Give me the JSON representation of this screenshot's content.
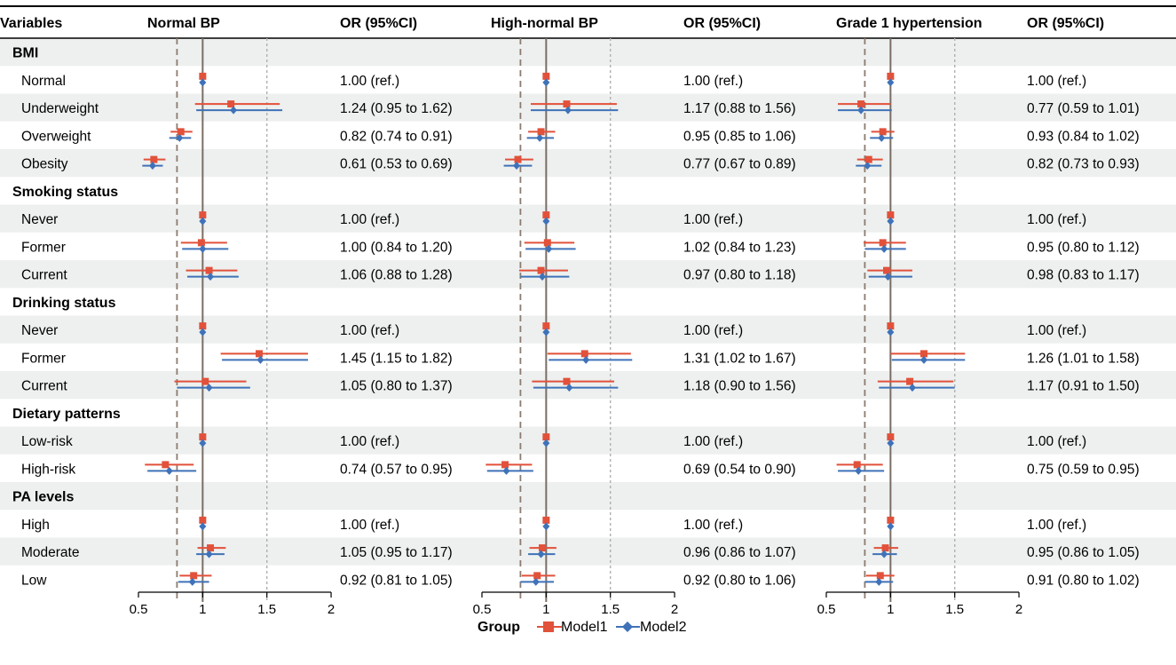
{
  "chart_data": {
    "type": "forest",
    "header": {
      "variables": "Variables",
      "or_label": "OR (95%CI)"
    },
    "panels": [
      {
        "title": "Normal BP"
      },
      {
        "title": "High-normal BP"
      },
      {
        "title": "Grade 1 hypertension"
      }
    ],
    "x_axis": {
      "xlim": [
        0.5,
        2
      ],
      "ticks": [
        0.5,
        1,
        1.5,
        2
      ],
      "tick_labels": [
        "0.5",
        "1",
        "1.5",
        "2"
      ],
      "reference_line": 1,
      "dashed_line": 0.8,
      "dotted_line": 1.5
    },
    "legend": {
      "title": "Group",
      "items": [
        {
          "name": "Model1",
          "color": "#e2513a",
          "marker": "square"
        },
        {
          "name": "Model2",
          "color": "#3f72b8",
          "marker": "diamond"
        }
      ]
    },
    "colors": {
      "model1": "#e2513a",
      "model2": "#3f72b8",
      "stripe": "#edf0ef",
      "reference": "#7a6e64",
      "dashed": "#8c7b70",
      "dotted": "#b0b0b0"
    },
    "rows": [
      {
        "kind": "header",
        "label": "BMI"
      },
      {
        "kind": "item",
        "label": "Normal",
        "values": [
          {
            "text": "1.00 (ref.)",
            "m1": [
              1,
              1,
              1
            ],
            "m2": [
              1,
              1,
              1
            ]
          },
          {
            "text": "1.00 (ref.)",
            "m1": [
              1,
              1,
              1
            ],
            "m2": [
              1,
              1,
              1
            ]
          },
          {
            "text": "1.00 (ref.)",
            "m1": [
              1,
              1,
              1
            ],
            "m2": [
              1,
              1,
              1
            ]
          }
        ]
      },
      {
        "kind": "item",
        "label": "Underweight",
        "values": [
          {
            "text": "1.24 (0.95 to 1.62)",
            "m1": [
              1.22,
              0.94,
              1.6
            ],
            "m2": [
              1.24,
              0.95,
              1.62
            ]
          },
          {
            "text": "1.17 (0.88 to 1.56)",
            "m1": [
              1.16,
              0.88,
              1.55
            ],
            "m2": [
              1.17,
              0.88,
              1.56
            ]
          },
          {
            "text": "0.77 (0.59 to 1.01)",
            "m1": [
              0.77,
              0.59,
              1.0
            ],
            "m2": [
              0.77,
              0.59,
              1.01
            ]
          }
        ]
      },
      {
        "kind": "item",
        "label": "Overweight",
        "values": [
          {
            "text": "0.82 (0.74 to 0.91)",
            "m1": [
              0.83,
              0.75,
              0.92
            ],
            "m2": [
              0.82,
              0.74,
              0.91
            ]
          },
          {
            "text": "0.95 (0.85 to 1.06)",
            "m1": [
              0.96,
              0.86,
              1.07
            ],
            "m2": [
              0.95,
              0.85,
              1.06
            ]
          },
          {
            "text": "0.93 (0.84 to 1.02)",
            "m1": [
              0.94,
              0.85,
              1.03
            ],
            "m2": [
              0.93,
              0.84,
              1.02
            ]
          }
        ]
      },
      {
        "kind": "item",
        "label": "Obesity",
        "values": [
          {
            "text": "0.61 (0.53 to 0.69)",
            "m1": [
              0.62,
              0.54,
              0.71
            ],
            "m2": [
              0.61,
              0.53,
              0.69
            ]
          },
          {
            "text": "0.77 (0.67 to 0.89)",
            "m1": [
              0.78,
              0.68,
              0.9
            ],
            "m2": [
              0.77,
              0.67,
              0.89
            ]
          },
          {
            "text": "0.82 (0.73 to 0.93)",
            "m1": [
              0.83,
              0.74,
              0.94
            ],
            "m2": [
              0.82,
              0.73,
              0.93
            ]
          }
        ]
      },
      {
        "kind": "header",
        "label": "Smoking status"
      },
      {
        "kind": "item",
        "label": "Never",
        "values": [
          {
            "text": "1.00 (ref.)",
            "m1": [
              1,
              1,
              1
            ],
            "m2": [
              1,
              1,
              1
            ]
          },
          {
            "text": "1.00 (ref.)",
            "m1": [
              1,
              1,
              1
            ],
            "m2": [
              1,
              1,
              1
            ]
          },
          {
            "text": "1.00 (ref.)",
            "m1": [
              1,
              1,
              1
            ],
            "m2": [
              1,
              1,
              1
            ]
          }
        ]
      },
      {
        "kind": "item",
        "label": "Former",
        "values": [
          {
            "text": "1.00 (0.84 to 1.20)",
            "m1": [
              0.99,
              0.83,
              1.19
            ],
            "m2": [
              1.0,
              0.84,
              1.2
            ]
          },
          {
            "text": "1.02 (0.84 to 1.23)",
            "m1": [
              1.01,
              0.83,
              1.22
            ],
            "m2": [
              1.02,
              0.84,
              1.23
            ]
          },
          {
            "text": "0.95 (0.80 to 1.12)",
            "m1": [
              0.94,
              0.79,
              1.12
            ],
            "m2": [
              0.95,
              0.8,
              1.12
            ]
          }
        ]
      },
      {
        "kind": "item",
        "label": "Current",
        "values": [
          {
            "text": "1.06 (0.88 to 1.28)",
            "m1": [
              1.05,
              0.87,
              1.27
            ],
            "m2": [
              1.06,
              0.88,
              1.28
            ]
          },
          {
            "text": "0.97 (0.80 to 1.18)",
            "m1": [
              0.96,
              0.79,
              1.17
            ],
            "m2": [
              0.97,
              0.8,
              1.18
            ]
          },
          {
            "text": "0.98 (0.83 to 1.17)",
            "m1": [
              0.97,
              0.82,
              1.17
            ],
            "m2": [
              0.98,
              0.83,
              1.17
            ]
          }
        ]
      },
      {
        "kind": "header",
        "label": "Drinking status"
      },
      {
        "kind": "item",
        "label": "Never",
        "values": [
          {
            "text": "1.00 (ref.)",
            "m1": [
              1,
              1,
              1
            ],
            "m2": [
              1,
              1,
              1
            ]
          },
          {
            "text": "1.00 (ref.)",
            "m1": [
              1,
              1,
              1
            ],
            "m2": [
              1,
              1,
              1
            ]
          },
          {
            "text": "1.00 (ref.)",
            "m1": [
              1,
              1,
              1
            ],
            "m2": [
              1,
              1,
              1
            ]
          }
        ]
      },
      {
        "kind": "item",
        "label": "Former",
        "values": [
          {
            "text": "1.45 (1.15 to 1.82)",
            "m1": [
              1.44,
              1.14,
              1.82
            ],
            "m2": [
              1.45,
              1.15,
              1.82
            ]
          },
          {
            "text": "1.31 (1.02 to 1.67)",
            "m1": [
              1.3,
              1.01,
              1.66
            ],
            "m2": [
              1.31,
              1.02,
              1.67
            ]
          },
          {
            "text": "1.26 (1.01 to 1.58)",
            "m1": [
              1.26,
              1.0,
              1.58
            ],
            "m2": [
              1.26,
              1.01,
              1.58
            ]
          }
        ]
      },
      {
        "kind": "item",
        "label": "Current",
        "values": [
          {
            "text": "1.05 (0.80 to 1.37)",
            "m1": [
              1.02,
              0.78,
              1.34
            ],
            "m2": [
              1.05,
              0.8,
              1.37
            ]
          },
          {
            "text": "1.18 (0.90 to 1.56)",
            "m1": [
              1.16,
              0.89,
              1.53
            ],
            "m2": [
              1.18,
              0.9,
              1.56
            ]
          },
          {
            "text": "1.17 (0.91 to 1.50)",
            "m1": [
              1.15,
              0.9,
              1.49
            ],
            "m2": [
              1.17,
              0.91,
              1.5
            ]
          }
        ]
      },
      {
        "kind": "header",
        "label": "Dietary patterns"
      },
      {
        "kind": "item",
        "label": "Low-risk",
        "values": [
          {
            "text": "1.00 (ref.)",
            "m1": [
              1,
              1,
              1
            ],
            "m2": [
              1,
              1,
              1
            ]
          },
          {
            "text": "1.00 (ref.)",
            "m1": [
              1,
              1,
              1
            ],
            "m2": [
              1,
              1,
              1
            ]
          },
          {
            "text": "1.00 (ref.)",
            "m1": [
              1,
              1,
              1
            ],
            "m2": [
              1,
              1,
              1
            ]
          }
        ]
      },
      {
        "kind": "item",
        "label": "High-risk",
        "values": [
          {
            "text": "0.74 (0.57 to 0.95)",
            "m1": [
              0.71,
              0.55,
              0.93
            ],
            "m2": [
              0.74,
              0.57,
              0.95
            ]
          },
          {
            "text": "0.69 (0.54 to 0.90)",
            "m1": [
              0.68,
              0.53,
              0.89
            ],
            "m2": [
              0.69,
              0.54,
              0.9
            ]
          },
          {
            "text": "0.75 (0.59 to 0.95)",
            "m1": [
              0.74,
              0.58,
              0.94
            ],
            "m2": [
              0.75,
              0.59,
              0.95
            ]
          }
        ]
      },
      {
        "kind": "header",
        "label": "PA levels"
      },
      {
        "kind": "item",
        "label": "High",
        "values": [
          {
            "text": "1.00 (ref.)",
            "m1": [
              1,
              1,
              1
            ],
            "m2": [
              1,
              1,
              1
            ]
          },
          {
            "text": "1.00 (ref.)",
            "m1": [
              1,
              1,
              1
            ],
            "m2": [
              1,
              1,
              1
            ]
          },
          {
            "text": "1.00 (ref.)",
            "m1": [
              1,
              1,
              1
            ],
            "m2": [
              1,
              1,
              1
            ]
          }
        ]
      },
      {
        "kind": "item",
        "label": "Moderate",
        "values": [
          {
            "text": "1.05 (0.95 to 1.17)",
            "m1": [
              1.06,
              0.96,
              1.18
            ],
            "m2": [
              1.05,
              0.95,
              1.17
            ]
          },
          {
            "text": "0.96 (0.86 to 1.07)",
            "m1": [
              0.97,
              0.87,
              1.08
            ],
            "m2": [
              0.96,
              0.86,
              1.07
            ]
          },
          {
            "text": "0.95 (0.86 to 1.05)",
            "m1": [
              0.96,
              0.87,
              1.06
            ],
            "m2": [
              0.95,
              0.86,
              1.05
            ]
          }
        ]
      },
      {
        "kind": "item",
        "label": "Low",
        "values": [
          {
            "text": "0.92 (0.81 to 1.05)",
            "m1": [
              0.93,
              0.82,
              1.07
            ],
            "m2": [
              0.92,
              0.81,
              1.05
            ]
          },
          {
            "text": "0.92 (0.80 to 1.06)",
            "m1": [
              0.93,
              0.81,
              1.07
            ],
            "m2": [
              0.92,
              0.8,
              1.06
            ]
          },
          {
            "text": "0.91 (0.80 to 1.02)",
            "m1": [
              0.92,
              0.81,
              1.03
            ],
            "m2": [
              0.91,
              0.8,
              1.02
            ]
          }
        ]
      }
    ]
  }
}
